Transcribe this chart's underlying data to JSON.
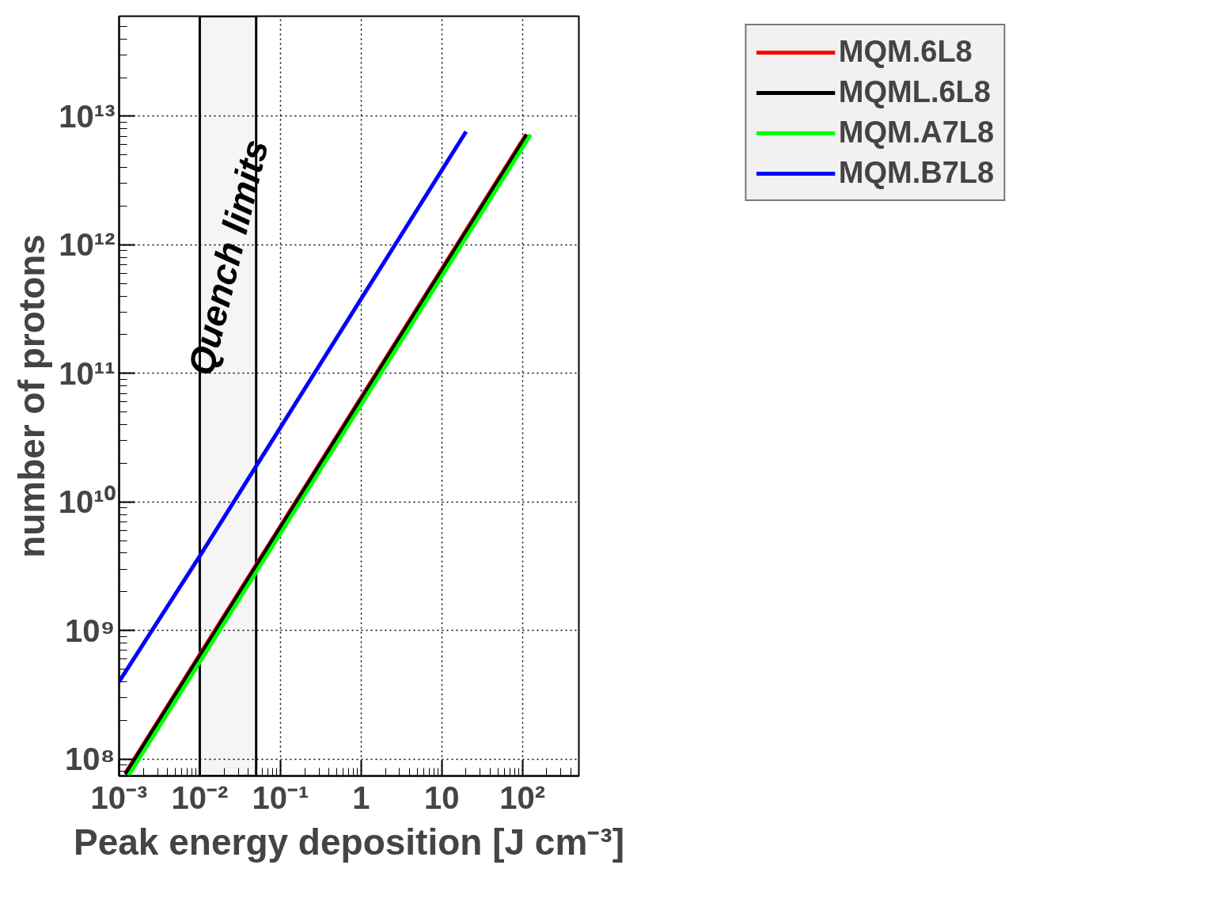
{
  "chart_data": {
    "type": "line",
    "xlabel": "Peak energy deposition [J cm⁻³]",
    "ylabel": "number of protons",
    "log": "xy",
    "grid": true,
    "legend": "top right",
    "line_style": "solid",
    "marker": "none",
    "xlim": [
      0.001,
      500
    ],
    "ylim": [
      74000000,
      60000000000000
    ],
    "xticks": [
      {
        "value": 0.001,
        "label": "10⁻³"
      },
      {
        "value": 0.01,
        "label": "10⁻²"
      },
      {
        "value": 0.1,
        "label": "10⁻¹"
      },
      1,
      10,
      {
        "value": 100,
        "label": "10²"
      }
    ],
    "yticks": [
      {
        "value": 100000000,
        "label": "10⁸"
      },
      {
        "value": 1000000000,
        "label": "10⁹"
      },
      {
        "value": 10000000000,
        "label": "10¹⁰"
      },
      {
        "value": 100000000000,
        "label": "10¹¹"
      },
      {
        "value": 1000000000000,
        "label": "10¹²"
      },
      {
        "value": 10000000000000,
        "label": "10¹³"
      }
    ],
    "bands": [
      {
        "axis": "x",
        "from": 0.01,
        "to": 0.05,
        "label": "Quench limits",
        "color": "#000000"
      }
    ],
    "series": [
      {
        "name": "MQM.6L8",
        "color": "#ff0000",
        "x": [
          0.0012,
          0.01,
          0.1,
          1,
          10,
          100,
          111
        ],
        "values": [
          78000000,
          650000000,
          6500000000,
          65000000000,
          650000000000,
          6500000000000,
          7200000000000
        ]
      },
      {
        "name": "MQML.6L8",
        "color": "#000000",
        "x": [
          0.0012,
          0.01,
          0.1,
          1,
          10,
          100,
          114
        ],
        "values": [
          76000000,
          630000000,
          6300000000,
          63000000000,
          630000000000,
          6300000000000,
          7200000000000
        ]
      },
      {
        "name": "MQM.A7L8",
        "color": "#00ff00",
        "x": [
          0.0013,
          0.01,
          0.1,
          1,
          10,
          100,
          126
        ],
        "values": [
          74000000,
          570000000,
          5700000000,
          57000000000,
          570000000000,
          5700000000000,
          7200000000000
        ]
      },
      {
        "name": "MQM.B7L8",
        "color": "#0000ff",
        "x": [
          0.001,
          0.01,
          0.1,
          1,
          10,
          20
        ],
        "values": [
          400000000,
          3800000000,
          38000000000,
          380000000000,
          3800000000000,
          7600000000000
        ]
      }
    ]
  }
}
